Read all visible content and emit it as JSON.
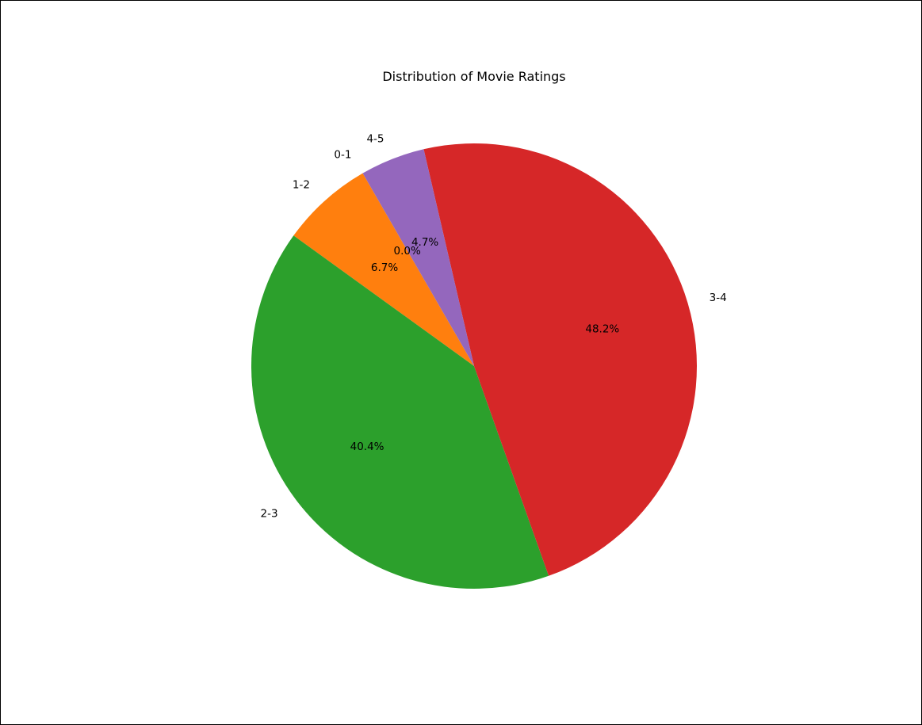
{
  "chart_data": {
    "type": "pie",
    "title": "Distribution of Movie Ratings",
    "start_angle_deg": 120,
    "direction": "counterclockwise",
    "slices": [
      {
        "label": "0-1",
        "value": 0.0,
        "pct_label": "0.0%",
        "color": "#1f77b4"
      },
      {
        "label": "1-2",
        "value": 6.7,
        "pct_label": "6.7%",
        "color": "#ff7f0e"
      },
      {
        "label": "2-3",
        "value": 40.4,
        "pct_label": "40.4%",
        "color": "#2ca02c"
      },
      {
        "label": "3-4",
        "value": 48.2,
        "pct_label": "48.2%",
        "color": "#d62728"
      },
      {
        "label": "4-5",
        "value": 4.7,
        "pct_label": "4.7%",
        "color": "#9467bd"
      }
    ]
  }
}
